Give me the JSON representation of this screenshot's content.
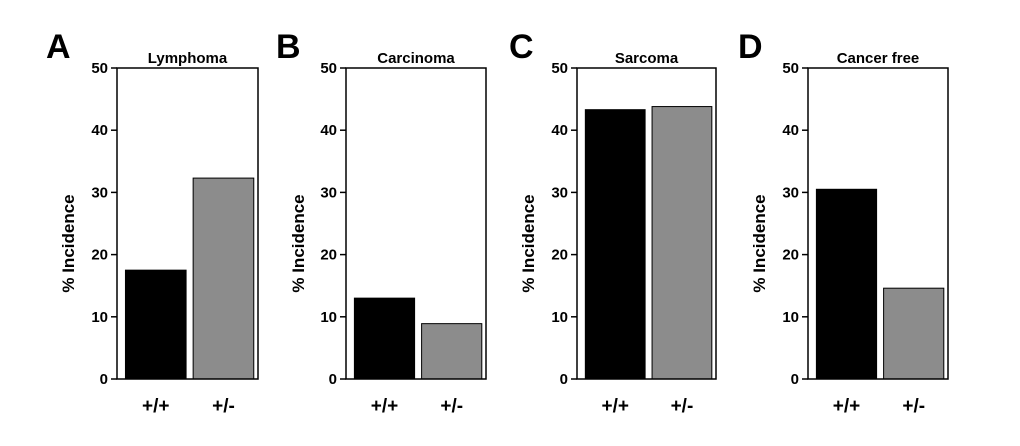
{
  "chart_data": [
    {
      "type": "bar",
      "letter": "A",
      "title": "Lymphoma",
      "ylabel": "% Incidence",
      "xlabel": "",
      "ylim": [
        0,
        50
      ],
      "yticks": [
        0,
        10,
        20,
        30,
        40,
        50
      ],
      "categories": [
        "+/+",
        "+/-"
      ],
      "values": [
        17.5,
        32.3
      ],
      "colors": [
        "#000000",
        "#8c8c8c"
      ],
      "grid": false
    },
    {
      "type": "bar",
      "letter": "B",
      "title": "Carcinoma",
      "ylabel": "% Incidence",
      "xlabel": "",
      "ylim": [
        0,
        50
      ],
      "yticks": [
        0,
        10,
        20,
        30,
        40,
        50
      ],
      "categories": [
        "+/+",
        "+/-"
      ],
      "values": [
        13.0,
        8.9
      ],
      "colors": [
        "#000000",
        "#8c8c8c"
      ],
      "grid": false
    },
    {
      "type": "bar",
      "letter": "C",
      "title": "Sarcoma",
      "ylabel": "% Incidence",
      "xlabel": "",
      "ylim": [
        0,
        50
      ],
      "yticks": [
        0,
        10,
        20,
        30,
        40,
        50
      ],
      "categories": [
        "+/+",
        "+/-"
      ],
      "values": [
        43.3,
        43.8
      ],
      "colors": [
        "#000000",
        "#8c8c8c"
      ],
      "grid": false
    },
    {
      "type": "bar",
      "letter": "D",
      "title": "Cancer free",
      "ylabel": "% Incidence",
      "xlabel": "",
      "ylim": [
        0,
        50
      ],
      "yticks": [
        0,
        10,
        20,
        30,
        40,
        50
      ],
      "categories": [
        "+/+",
        "+/-"
      ],
      "values": [
        30.5,
        14.6
      ],
      "colors": [
        "#000000",
        "#8c8c8c"
      ],
      "grid": false
    }
  ]
}
